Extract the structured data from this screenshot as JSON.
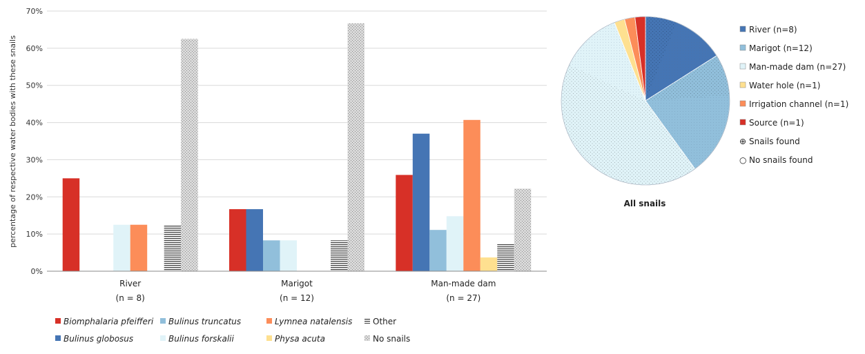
{
  "chart_data": [
    {
      "type": "bar",
      "ylabel": "percentage of respective  water bodies with these snails",
      "ylim": [
        0,
        70
      ],
      "yticks": [
        "0%",
        "10%",
        "20%",
        "30%",
        "40%",
        "50%",
        "60%",
        "70%"
      ],
      "grid": true,
      "legend_position": "bottom",
      "categories": [
        {
          "name": "River",
          "n": "(n = 8)"
        },
        {
          "name": "Marigot",
          "n": "(n = 12)"
        },
        {
          "name": "Man-made dam",
          "n": "(n = 27)"
        }
      ],
      "series": [
        {
          "name": "Biomphalaria pfeifferi",
          "italic": true,
          "color": "#d73027",
          "pattern": "solid",
          "values": [
            25,
            16.7,
            25.9
          ]
        },
        {
          "name": "Bulinus globosus",
          "italic": true,
          "color": "#4575b4",
          "pattern": "solid",
          "values": [
            0,
            16.7,
            37
          ]
        },
        {
          "name": "Bulinus truncatus",
          "italic": true,
          "color": "#91bfdb",
          "pattern": "solid",
          "values": [
            0,
            8.3,
            11.1
          ]
        },
        {
          "name": "Bulinus forskalii",
          "italic": true,
          "color": "#e0f3f8",
          "pattern": "solid",
          "values": [
            12.5,
            8.3,
            14.8
          ]
        },
        {
          "name": "Lymnea natalensis",
          "italic": true,
          "color": "#fc8d59",
          "pattern": "solid",
          "values": [
            12.5,
            0,
            40.7
          ]
        },
        {
          "name": "Physa acuta",
          "italic": true,
          "color": "#fee090",
          "pattern": "solid",
          "values": [
            0,
            0,
            3.7
          ]
        },
        {
          "name": "Other",
          "italic": false,
          "color": "#555555",
          "pattern": "stripes",
          "values": [
            12.5,
            8.3,
            7.4
          ]
        },
        {
          "name": "No snails",
          "italic": false,
          "color": "#cccccc",
          "pattern": "dots",
          "values": [
            62.5,
            66.7,
            22.2
          ]
        }
      ]
    },
    {
      "type": "pie",
      "title": "All snails",
      "legend_position": "right",
      "slices": [
        {
          "name": "River (n=8)",
          "value": 8,
          "color": "#4575b4",
          "snails_found_fraction": 0.375
        },
        {
          "name": "Marigot (n=12)",
          "value": 12,
          "color": "#91bfdb",
          "snails_found_fraction": 0.333
        },
        {
          "name": "Man-made dam (n=27)",
          "value": 27,
          "color": "#e0f3f8",
          "snails_found_fraction": 0.778
        },
        {
          "name": "Water hole (n=1)",
          "value": 1,
          "color": "#fee090",
          "snails_found_fraction": 0
        },
        {
          "name": "Irrigation channel (n=1)",
          "value": 1,
          "color": "#fc8d59",
          "snails_found_fraction": 0
        },
        {
          "name": "Source (n=1)",
          "value": 1,
          "color": "#d73027",
          "snails_found_fraction": 0
        }
      ],
      "pattern_legend": [
        {
          "name": "Snails found",
          "symbol": "⊕"
        },
        {
          "name": "No snails found",
          "symbol": "○"
        }
      ]
    }
  ]
}
